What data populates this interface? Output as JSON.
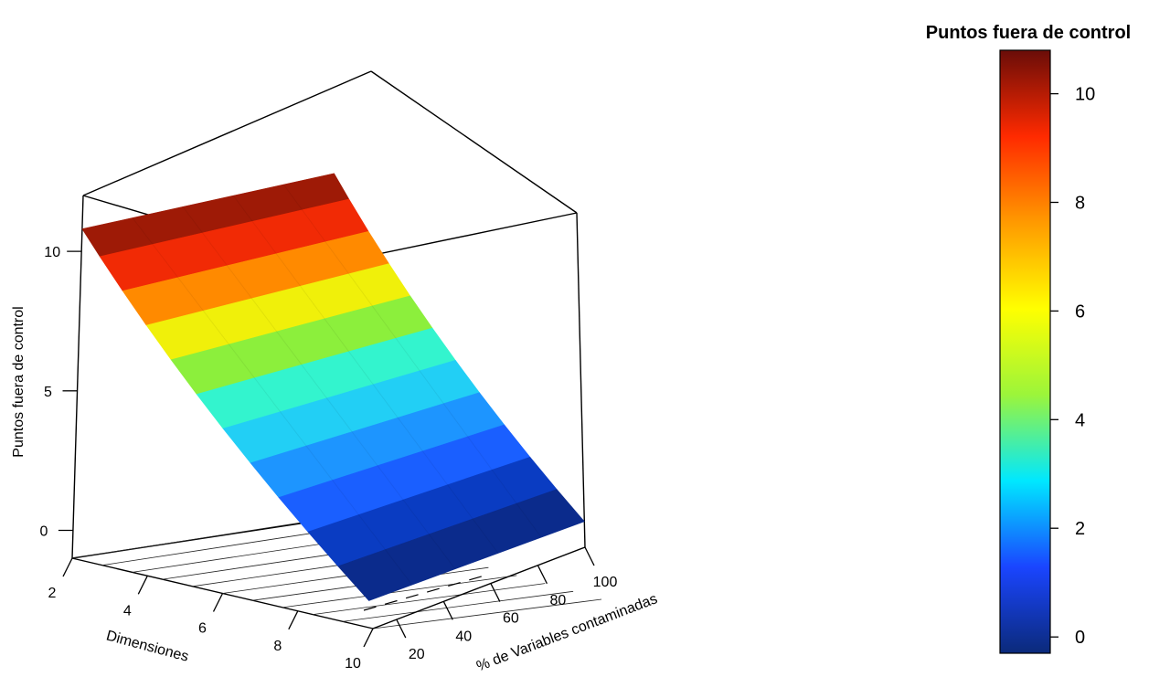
{
  "chart_data": {
    "type": "surface3d",
    "zlabel": "Puntos fuera de control",
    "x_axis": {
      "label": "Dimensiones",
      "ticks": [
        2,
        4,
        6,
        8,
        10
      ],
      "range": [
        2,
        10
      ]
    },
    "y_axis": {
      "label": "% de Variables contaminadas",
      "ticks": [
        20,
        40,
        60,
        80,
        100
      ],
      "range": [
        10,
        100
      ]
    },
    "z_axis": {
      "ticks": [
        0,
        5,
        10
      ],
      "range": [
        -1,
        12
      ]
    },
    "surface": {
      "dimensiones": [
        2,
        4,
        6,
        8,
        10
      ],
      "porcentaje": [
        10,
        100
      ],
      "z": [
        [
          10.8,
          10.8
        ],
        [
          8.1,
          8.1
        ],
        [
          5.4,
          5.4
        ],
        [
          2.7,
          2.7
        ],
        [
          0,
          0
        ]
      ],
      "color_bands": [
        {
          "range": [
            10,
            10.8
          ],
          "color": "#9e1a06"
        },
        {
          "range": [
            9,
            10
          ],
          "color": "#f12a05"
        },
        {
          "range": [
            8,
            9
          ],
          "color": "#ff8a00"
        },
        {
          "range": [
            7,
            8
          ],
          "color": "#f0f00a"
        },
        {
          "range": [
            6,
            7
          ],
          "color": "#8cef3c"
        },
        {
          "range": [
            5,
            6
          ],
          "color": "#33f4ce"
        },
        {
          "range": [
            4,
            5
          ],
          "color": "#22cff5"
        },
        {
          "range": [
            3,
            4
          ],
          "color": "#1d95ff"
        },
        {
          "range": [
            2,
            3
          ],
          "color": "#1a5fff"
        },
        {
          "range": [
            1,
            2
          ],
          "color": "#0a3cc2"
        },
        {
          "range": [
            0,
            1
          ],
          "color": "#0b2b8c"
        }
      ]
    },
    "colorbar": {
      "title": "Puntos fuera de control",
      "ticks": [
        0,
        2,
        4,
        6,
        8,
        10
      ],
      "range": [
        -0.3,
        10.8
      ],
      "gradient": [
        "#0b2a7a",
        "#1a45ff",
        "#00e8ff",
        "#9cf53a",
        "#ffff00",
        "#ff9a00",
        "#ff2a00",
        "#6a0d08"
      ]
    }
  }
}
